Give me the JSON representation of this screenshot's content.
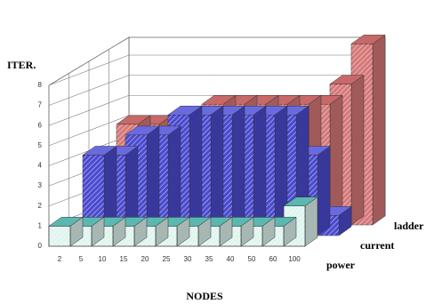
{
  "chart_data": {
    "type": "bar3d",
    "x_label": "NODES",
    "y_label": "ITER.",
    "categories": [
      "2",
      "5",
      "10",
      "15",
      "20",
      "25",
      "30",
      "35",
      "40",
      "50",
      "60",
      "100"
    ],
    "series": [
      {
        "name": "power",
        "color": "#dff5f0",
        "values": [
          1,
          1,
          1,
          1,
          1,
          1,
          1,
          1,
          1,
          1,
          1,
          2
        ]
      },
      {
        "name": "current",
        "color": "#4a4ad0",
        "values": [
          4,
          4,
          5,
          5,
          6,
          6,
          6,
          6,
          6,
          6,
          4,
          1
        ]
      },
      {
        "name": "ladder",
        "color": "#d67878",
        "values": [
          5,
          5,
          5,
          5,
          6,
          6,
          6,
          6,
          6,
          6,
          7,
          9
        ]
      }
    ],
    "ylim": [
      0,
      8
    ],
    "yticks": [
      0,
      1,
      2,
      3,
      4,
      5,
      6,
      7,
      8
    ],
    "grid": true
  }
}
